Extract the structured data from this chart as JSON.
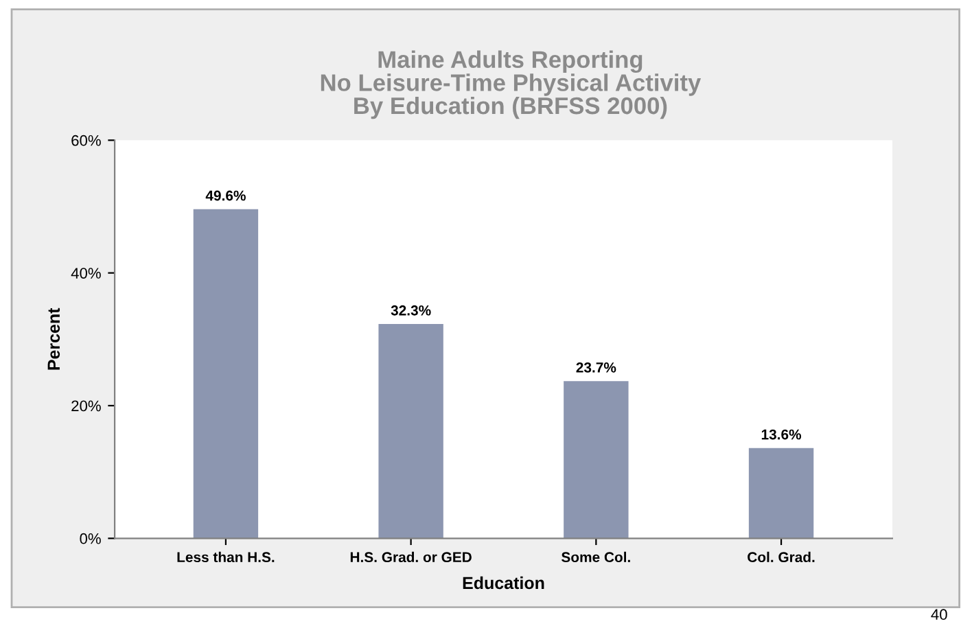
{
  "chart_data": {
    "type": "bar",
    "title": "Maine Adults Reporting\nNo Leisure-Time Physical Activity\nBy Education (BRFSS 2000)",
    "categories": [
      "Less than H.S.",
      "H.S. Grad. or GED",
      "Some Col.",
      "Col. Grad."
    ],
    "values": [
      49.6,
      32.3,
      23.7,
      13.6
    ],
    "value_labels": [
      "49.6%",
      "32.3%",
      "23.7%",
      "13.6%"
    ],
    "color": "#8c96b0",
    "xlabel": "Education",
    "ylabel": "Percent",
    "ylim": [
      0,
      60
    ],
    "yticks": [
      {
        "value": 0,
        "label": "0%"
      },
      {
        "value": 20,
        "label": "20%"
      },
      {
        "value": 40,
        "label": "40%"
      },
      {
        "value": 60,
        "label": "60%"
      }
    ],
    "grid": false,
    "annotations": [
      "40"
    ]
  }
}
